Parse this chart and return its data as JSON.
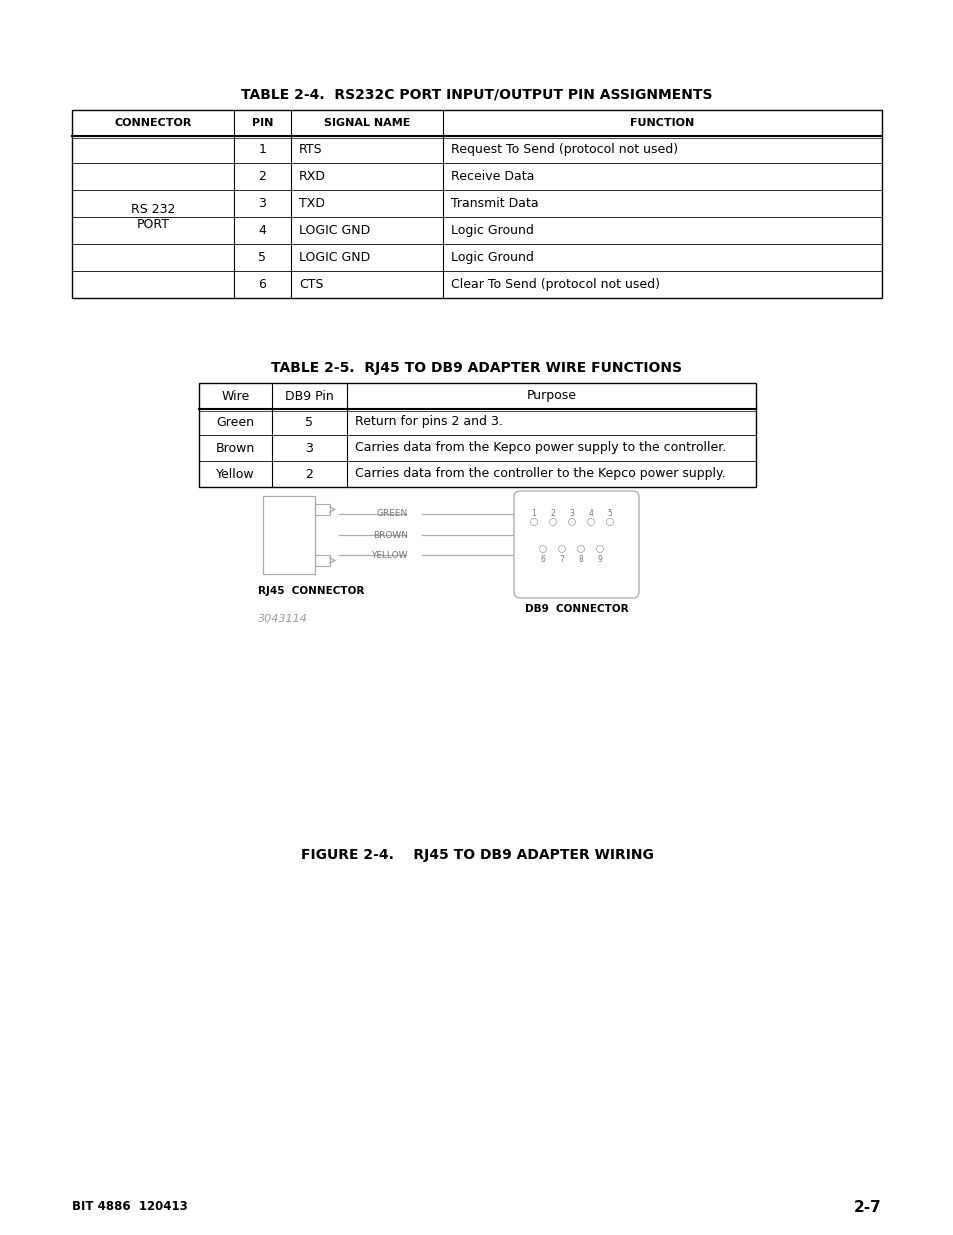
{
  "bg_color": "#ffffff",
  "table1_title": "TABLE 2-4.  RS232C PORT INPUT/OUTPUT PIN ASSIGNMENTS",
  "table1_headers": [
    "CONNECTOR",
    "PIN",
    "SIGNAL NAME",
    "FUNCTION"
  ],
  "table1_connector": "RS 232\nPORT",
  "table1_rows": [
    [
      "1",
      "RTS",
      "Request To Send (protocol not used)"
    ],
    [
      "2",
      "RXD",
      "Receive Data"
    ],
    [
      "3",
      "TXD",
      "Transmit Data"
    ],
    [
      "4",
      "LOGIC GND",
      "Logic Ground"
    ],
    [
      "5",
      "LOGIC GND",
      "Logic Ground"
    ],
    [
      "6",
      "CTS",
      "Clear To Send (protocol not used)"
    ]
  ],
  "table2_title": "TABLE 2-5.  RJ45 TO DB9 ADAPTER WIRE FUNCTIONS",
  "table2_headers": [
    "Wire",
    "DB9 Pin",
    "Purpose"
  ],
  "table2_rows": [
    [
      "Green",
      "5",
      "Return for pins 2 and 3."
    ],
    [
      "Brown",
      "3",
      "Carries data from the Kepco power supply to the controller."
    ],
    [
      "Yellow",
      "2",
      "Carries data from the controller to the Kepco power supply."
    ]
  ],
  "figure_title": "FIGURE 2-4.    RJ45 TO DB9 ADAPTER WIRING",
  "rj45_label": "RJ45  CONNECTOR",
  "db9_label": "DB9  CONNECTOR",
  "part_number": "3043114",
  "footer_left": "BIT 4886  120413",
  "footer_right": "2-7",
  "wire_labels": [
    "GREEN",
    "BROWN",
    "YELLOW"
  ]
}
